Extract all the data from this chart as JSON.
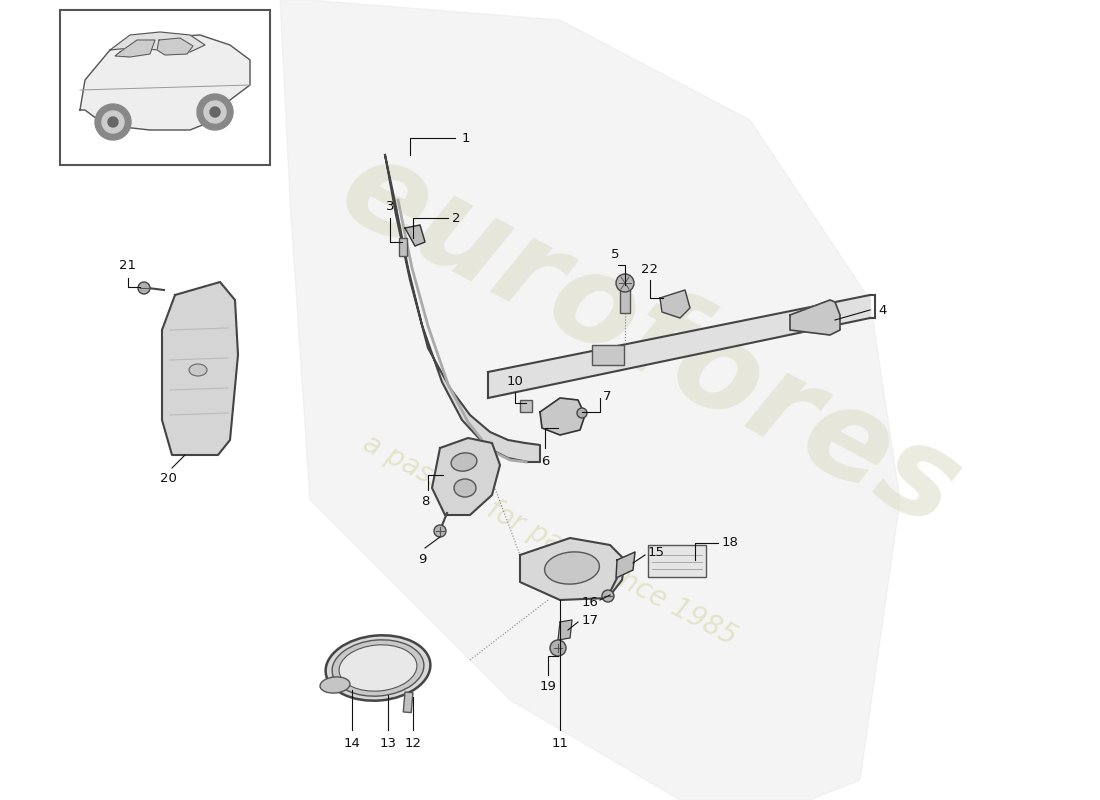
{
  "background_color": "#ffffff",
  "line_color": "#333333",
  "part_fill": "#e8e8e8",
  "shadow_fill": "#d0d0d0",
  "watermark1_text": "eurofores",
  "watermark2_text": "a passion for parts since 1985",
  "watermark1_color": "#d8d8c0",
  "watermark2_color": "#d8d8b0",
  "watermark1_alpha": 0.5,
  "watermark2_alpha": 0.6,
  "label_color": "#111111",
  "label_fontsize": 9.5
}
